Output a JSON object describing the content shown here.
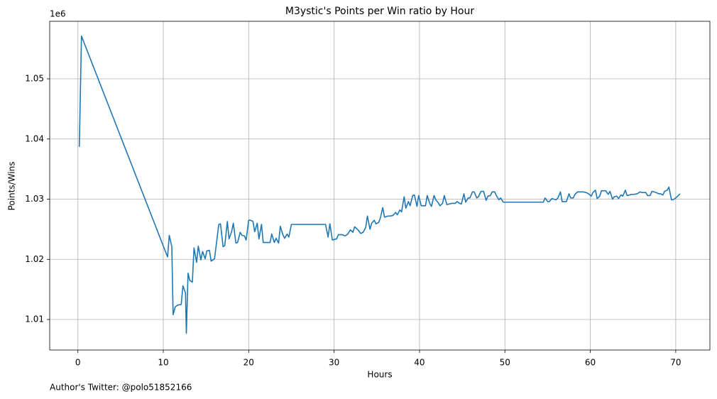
{
  "chart_data": {
    "type": "line",
    "title": "M3ystic's Points per Win ratio by Hour",
    "x_label": "Hours",
    "y_label": "Points/Wins",
    "y_offset_label": "1e6",
    "footer": "Author's Twitter: @polo51852166",
    "color": "#1f77b4",
    "grid": true,
    "xlim": [
      -3.3,
      74.0
    ],
    "xticks": [
      0,
      10,
      20,
      30,
      40,
      50,
      60,
      70
    ],
    "ylim": [
      1.00493,
      1.05956
    ],
    "yticks": [
      1.01,
      1.02,
      1.03,
      1.04,
      1.05
    ],
    "x": [
      0.17,
      0.42,
      10.5,
      10.7,
      11.0,
      11.15,
      11.4,
      11.7,
      12.1,
      12.3,
      12.6,
      12.7,
      12.9,
      13.1,
      13.4,
      13.6,
      13.9,
      14.1,
      14.4,
      14.6,
      14.9,
      15.1,
      15.4,
      15.6,
      16.0,
      16.2,
      16.5,
      16.7,
      17.0,
      17.2,
      17.5,
      17.7,
      18.0,
      18.2,
      18.5,
      18.7,
      19.0,
      19.2,
      19.5,
      19.7,
      20.0,
      20.2,
      20.5,
      20.7,
      21.0,
      21.2,
      21.5,
      21.7,
      22.0,
      22.2,
      22.5,
      22.7,
      23.0,
      23.2,
      23.5,
      23.7,
      24.0,
      24.2,
      24.5,
      24.7,
      25.0,
      29.0,
      29.3,
      29.5,
      29.8,
      30.0,
      30.3,
      30.5,
      30.9,
      31.3,
      31.6,
      31.9,
      32.2,
      32.4,
      32.8,
      33.1,
      33.4,
      33.7,
      33.9,
      34.2,
      34.4,
      34.7,
      34.9,
      35.2,
      35.4,
      35.7,
      35.9,
      36.3,
      36.6,
      36.9,
      37.2,
      37.4,
      37.7,
      37.9,
      38.2,
      38.4,
      38.7,
      38.9,
      39.2,
      39.4,
      39.7,
      39.9,
      40.2,
      40.4,
      40.7,
      40.9,
      41.2,
      41.4,
      41.7,
      41.9,
      42.2,
      42.4,
      42.7,
      42.9,
      43.2,
      43.5,
      43.8,
      44.2,
      44.4,
      44.7,
      44.9,
      45.2,
      45.4,
      45.7,
      45.9,
      46.2,
      46.4,
      46.7,
      46.9,
      47.2,
      47.5,
      47.8,
      48.0,
      48.3,
      48.5,
      48.8,
      49.0,
      49.3,
      49.5,
      49.8,
      50.1,
      54.5,
      54.7,
      55.0,
      55.2,
      55.5,
      55.7,
      56.0,
      56.2,
      56.5,
      56.7,
      57.0,
      57.2,
      57.5,
      57.7,
      58.0,
      58.2,
      58.5,
      58.8,
      59.2,
      59.5,
      59.8,
      60.1,
      60.3,
      60.6,
      60.8,
      61.1,
      61.3,
      61.6,
      61.8,
      62.1,
      62.3,
      62.6,
      62.8,
      63.1,
      63.3,
      63.6,
      63.8,
      64.1,
      64.3,
      64.6,
      64.8,
      65.1,
      65.5,
      65.8,
      66.1,
      66.5,
      66.7,
      67.0,
      67.2,
      67.5,
      67.7,
      68.0,
      68.2,
      68.5,
      68.7,
      69.0,
      69.2,
      69.5,
      69.7,
      70.0,
      70.3,
      70.5
    ],
    "values": [
      1.0387,
      1.0571,
      1.0204,
      1.024,
      1.0221,
      1.0108,
      1.0121,
      1.0124,
      1.0125,
      1.0156,
      1.0144,
      1.0077,
      1.0177,
      1.0165,
      1.0162,
      1.0219,
      1.0195,
      1.0222,
      1.0199,
      1.0213,
      1.0201,
      1.0214,
      1.0215,
      1.0197,
      1.0201,
      1.0224,
      1.0258,
      1.0259,
      1.0221,
      1.0223,
      1.0263,
      1.0234,
      1.0246,
      1.026,
      1.0227,
      1.0228,
      1.0245,
      1.024,
      1.0239,
      1.0232,
      1.0265,
      1.0265,
      1.0263,
      1.0246,
      1.026,
      1.0234,
      1.0258,
      1.0228,
      1.0228,
      1.0228,
      1.0228,
      1.0242,
      1.0228,
      1.0235,
      1.0227,
      1.0255,
      1.0241,
      1.0235,
      1.0242,
      1.0237,
      1.0258,
      1.0258,
      1.0237,
      1.0259,
      1.0232,
      1.0233,
      1.0234,
      1.0241,
      1.0241,
      1.0239,
      1.0242,
      1.0249,
      1.0245,
      1.0254,
      1.0249,
      1.0243,
      1.0245,
      1.0253,
      1.0272,
      1.025,
      1.026,
      1.0265,
      1.0259,
      1.0261,
      1.0268,
      1.0286,
      1.027,
      1.0272,
      1.0272,
      1.0273,
      1.0278,
      1.0274,
      1.0282,
      1.0279,
      1.0304,
      1.0285,
      1.0296,
      1.0289,
      1.0306,
      1.0307,
      1.0288,
      1.0306,
      1.0289,
      1.0289,
      1.0289,
      1.0306,
      1.0293,
      1.0288,
      1.0306,
      1.0299,
      1.0294,
      1.0289,
      1.0293,
      1.0306,
      1.0291,
      1.0292,
      1.0293,
      1.0293,
      1.0296,
      1.0293,
      1.0292,
      1.0309,
      1.0295,
      1.0302,
      1.0302,
      1.0312,
      1.0312,
      1.0302,
      1.0304,
      1.0313,
      1.0313,
      1.0298,
      1.0305,
      1.0306,
      1.0312,
      1.0312,
      1.0306,
      1.0299,
      1.0302,
      1.0295,
      1.0295,
      1.0295,
      1.0302,
      1.0296,
      1.0296,
      1.0301,
      1.03,
      1.0299,
      1.0302,
      1.0312,
      1.0296,
      1.0296,
      1.0296,
      1.0309,
      1.0302,
      1.0302,
      1.0308,
      1.0312,
      1.0312,
      1.0312,
      1.0311,
      1.0309,
      1.0305,
      1.0311,
      1.0315,
      1.0301,
      1.0305,
      1.0314,
      1.0314,
      1.0314,
      1.0308,
      1.0313,
      1.03,
      1.0304,
      1.0305,
      1.0301,
      1.0307,
      1.0305,
      1.0315,
      1.0306,
      1.0307,
      1.0308,
      1.0308,
      1.0309,
      1.0312,
      1.0311,
      1.0311,
      1.0306,
      1.0306,
      1.0313,
      1.0312,
      1.0311,
      1.0309,
      1.0309,
      1.0307,
      1.0313,
      1.0315,
      1.032,
      1.0299,
      1.0299,
      1.0302,
      1.0306,
      1.0309
    ]
  }
}
